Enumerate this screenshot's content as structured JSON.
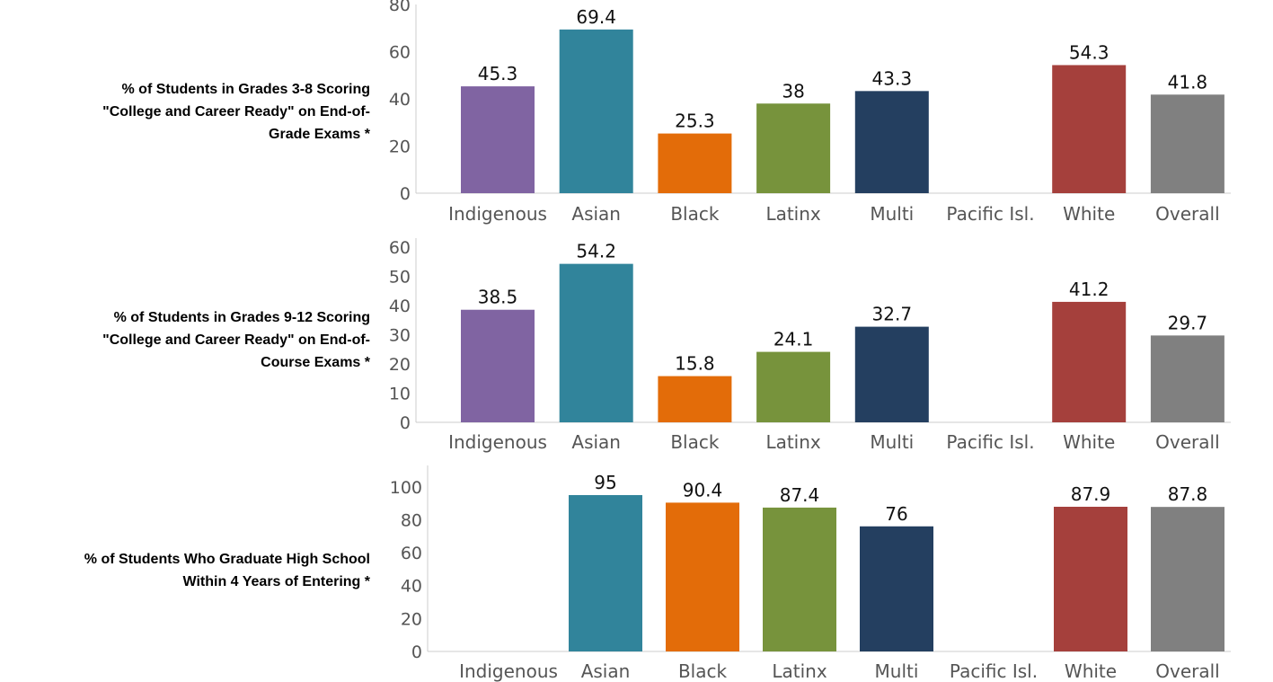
{
  "chart_data": [
    {
      "type": "bar",
      "title": "% of Students in Grades 3-8 Scoring \"College and Career Ready\" on End-of-Grade Exams *",
      "title_lines": [
        "% of Students in Grades 3-8 Scoring",
        "\"College and Career Ready\" on End-of-",
        "Grade Exams *"
      ],
      "categories": [
        "Indigenous",
        "Asian",
        "Black",
        "Latinx",
        "Multi",
        "Pacific Isl.",
        "White",
        "Overall"
      ],
      "values": [
        45.3,
        69.4,
        25.3,
        38,
        43.3,
        null,
        54.3,
        41.8
      ],
      "ylim": [
        0,
        80
      ],
      "yticks": [
        0,
        20,
        40,
        60,
        80
      ],
      "xlabel": "",
      "ylabel": "",
      "grid": false,
      "legend": "none"
    },
    {
      "type": "bar",
      "title": "% of Students in Grades 9-12 Scoring \"College and Career Ready\" on End-of-Course Exams *",
      "title_lines": [
        "% of Students in Grades 9-12 Scoring",
        "\"College and Career Ready\" on End-of-",
        "Course Exams *"
      ],
      "categories": [
        "Indigenous",
        "Asian",
        "Black",
        "Latinx",
        "Multi",
        "Pacific Isl.",
        "White",
        "Overall"
      ],
      "values": [
        38.5,
        54.2,
        15.8,
        24.1,
        32.7,
        null,
        41.2,
        29.7
      ],
      "ylim": [
        0,
        63
      ],
      "yticks": [
        0,
        10,
        20,
        30,
        40,
        50,
        60
      ],
      "xlabel": "",
      "ylabel": "",
      "grid": false,
      "legend": "none"
    },
    {
      "type": "bar",
      "title": "% of Students Who Graduate High School Within 4 Years of Entering *",
      "title_lines": [
        "% of Students Who Graduate High School",
        "Within 4 Years of Entering *"
      ],
      "categories": [
        "Indigenous",
        "Asian",
        "Black",
        "Latinx",
        "Multi",
        "Pacific Isl.",
        "White",
        "Overall"
      ],
      "values": [
        null,
        95,
        90.4,
        87.4,
        76,
        null,
        87.9,
        87.8
      ],
      "ylim": [
        0,
        113
      ],
      "yticks": [
        0,
        20,
        40,
        60,
        80,
        100
      ],
      "xlabel": "",
      "ylabel": "",
      "grid": false,
      "legend": "none"
    }
  ],
  "colors": {
    "Indigenous": "#8064a2",
    "Asian": "#31849b",
    "Black": "#e36c09",
    "Latinx": "#77933c",
    "Multi": "#243f60",
    "Pacific Isl.": "#bfbfbf",
    "White": "#a5403c",
    "Overall": "#808080"
  }
}
